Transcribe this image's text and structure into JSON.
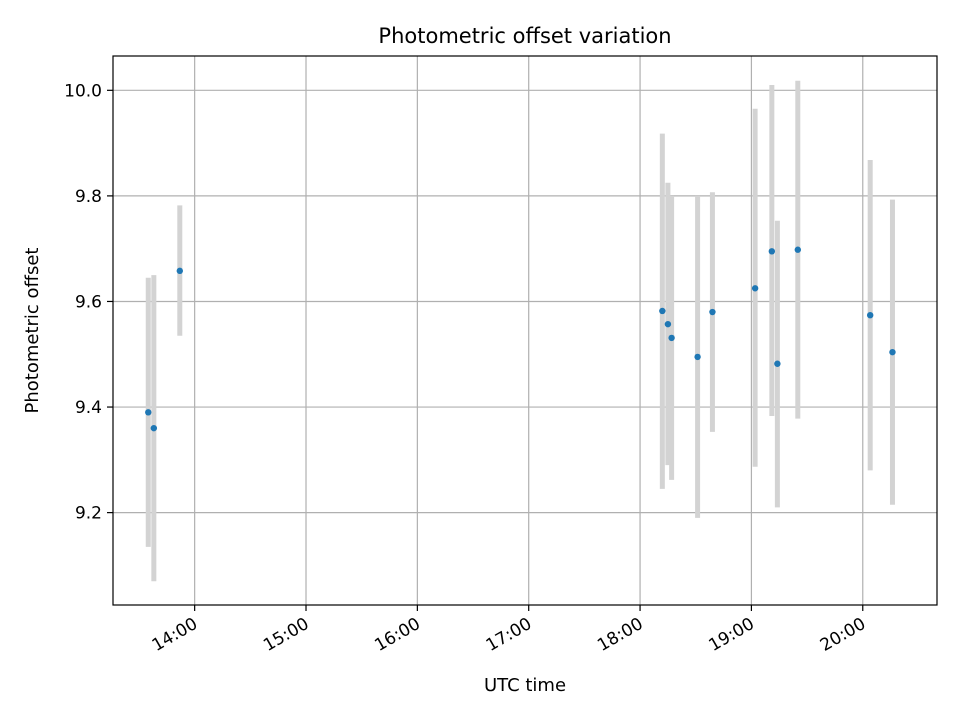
{
  "chart_data": {
    "type": "scatter",
    "title": "Photometric offset variation",
    "xlabel": "UTC time",
    "ylabel": "Photometric offset",
    "x_ticks": [
      "14:00",
      "15:00",
      "16:00",
      "17:00",
      "18:00",
      "19:00",
      "20:00"
    ],
    "y_ticks": [
      "9.2",
      "9.4",
      "9.6",
      "9.8",
      "10.0"
    ],
    "xlim": [
      "13:16",
      "20:40"
    ],
    "ylim": [
      9.025,
      10.065
    ],
    "grid": true,
    "legend": "none",
    "point_color": "#1f77b4",
    "errorbar_color": "#d3d3d3",
    "points": [
      {
        "x": "13:35",
        "y": 9.39,
        "err_low": 9.135,
        "err_high": 9.645
      },
      {
        "x": "13:38",
        "y": 9.36,
        "err_low": 9.07,
        "err_high": 9.65
      },
      {
        "x": "13:52",
        "y": 9.658,
        "err_low": 9.535,
        "err_high": 9.782
      },
      {
        "x": "18:12",
        "y": 9.582,
        "err_low": 9.245,
        "err_high": 9.918
      },
      {
        "x": "18:15",
        "y": 9.557,
        "err_low": 9.29,
        "err_high": 9.825
      },
      {
        "x": "18:17",
        "y": 9.531,
        "err_low": 9.262,
        "err_high": 9.8
      },
      {
        "x": "18:31",
        "y": 9.495,
        "err_low": 9.19,
        "err_high": 9.8
      },
      {
        "x": "18:39",
        "y": 9.58,
        "err_low": 9.353,
        "err_high": 9.807
      },
      {
        "x": "19:02",
        "y": 9.625,
        "err_low": 9.287,
        "err_high": 9.965
      },
      {
        "x": "19:11",
        "y": 9.695,
        "err_low": 9.383,
        "err_high": 10.01
      },
      {
        "x": "19:14",
        "y": 9.482,
        "err_low": 9.21,
        "err_high": 9.753
      },
      {
        "x": "19:25",
        "y": 9.698,
        "err_low": 9.378,
        "err_high": 10.018
      },
      {
        "x": "20:04",
        "y": 9.574,
        "err_low": 9.28,
        "err_high": 9.868
      },
      {
        "x": "20:16",
        "y": 9.504,
        "err_low": 9.215,
        "err_high": 9.793
      }
    ]
  }
}
